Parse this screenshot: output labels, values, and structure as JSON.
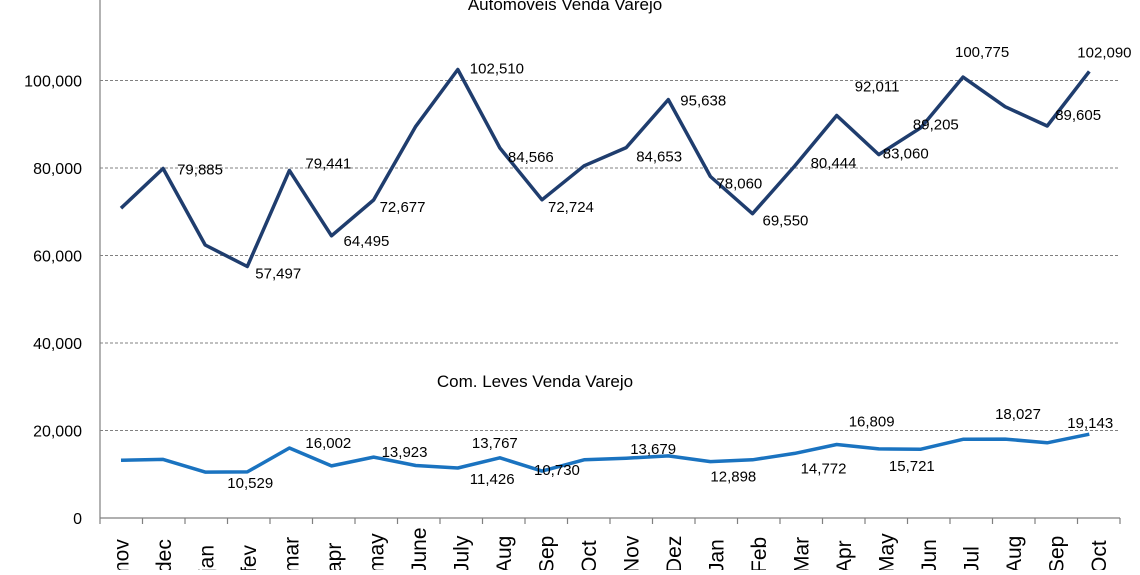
{
  "chart_data": {
    "type": "line",
    "ylim": [
      0,
      120000
    ],
    "yticks": [
      0,
      20000,
      40000,
      60000,
      80000,
      100000
    ],
    "ytick_labels": [
      "0",
      "20,000",
      "40,000",
      "60,000",
      "80,000",
      "100,000"
    ],
    "grid": true,
    "categories": [
      "nov",
      "dec",
      "jan",
      "fev",
      "mar",
      "apr",
      "may",
      "June",
      "July",
      "Aug",
      "Sep",
      "Oct",
      "Nov",
      "Dez",
      "Jan",
      "Feb",
      "Mar",
      "Apr",
      "May",
      "Jun",
      "Jul",
      "Aug",
      "Sep",
      "Oct"
    ],
    "series": [
      {
        "name": "Automoveis Venda Varejo",
        "color": "#1f3d6e",
        "values": [
          70800,
          79885,
          62400,
          57497,
          79441,
          64495,
          72677,
          89500,
          102510,
          84566,
          72724,
          80500,
          84653,
          95638,
          78060,
          69550,
          80444,
          92011,
          83060,
          89205,
          100775,
          94000,
          89605,
          102090
        ],
        "labels": [
          "",
          "79,885",
          "",
          "57,497",
          "79,441",
          "64,495",
          "72,677",
          "",
          "102,510",
          "84,566",
          "72,724",
          "",
          "84,653",
          "95,638",
          "78,060",
          "69,550",
          "80,444",
          "92,011",
          "83,060",
          "89,205",
          "100,775",
          "",
          "89,605",
          "102,090"
        ]
      },
      {
        "name": "Com. Leves Venda Varejo",
        "color": "#1a73c0",
        "values": [
          13200,
          13400,
          10500,
          10529,
          16002,
          11900,
          13923,
          12000,
          11426,
          13767,
          10730,
          13300,
          13679,
          14200,
          12898,
          13300,
          14772,
          16809,
          15800,
          15721,
          18000,
          18027,
          17200,
          19143
        ],
        "labels": [
          "",
          "",
          "",
          "10,529",
          "16,002",
          "",
          "13,923",
          "",
          "11,426",
          "13,767",
          "10,730",
          "",
          "13,679",
          "",
          "12,898",
          "",
          "14,772",
          "16,809",
          "",
          "15,721",
          "",
          "18,027",
          "",
          "19,143"
        ]
      }
    ]
  }
}
